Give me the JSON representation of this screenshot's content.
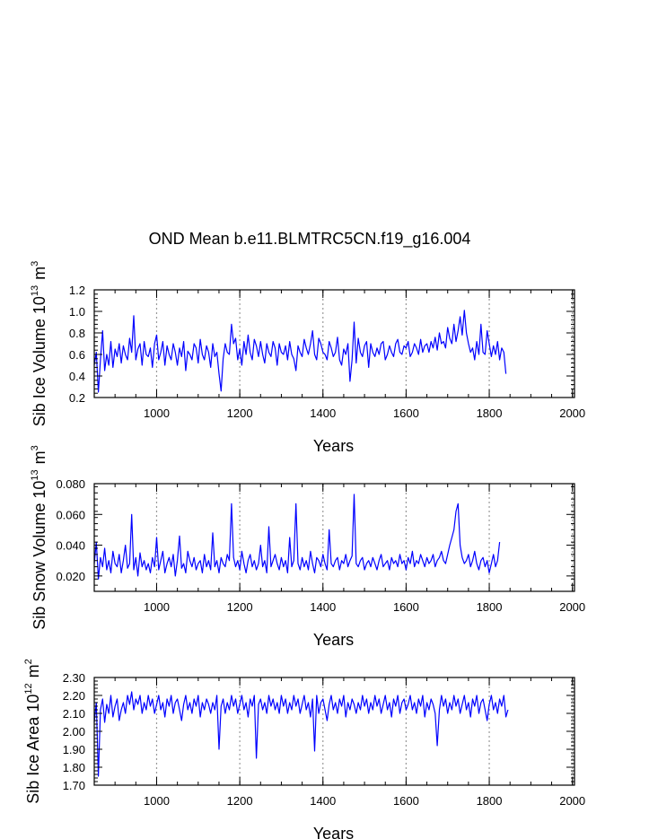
{
  "figure": {
    "title": "OND Mean b.e11.BLMTRC5CN.f19_g16.004"
  },
  "chart_data": [
    {
      "type": "line",
      "title": "OND Mean b.e11.BLMTRC5CN.f19_g16.004",
      "xlabel": "Years",
      "ylabel_base": "Sib Ice Volume 10",
      "ylabel_exp": "13",
      "ylabel_unit": "m",
      "ylabel_unit_exp": "3",
      "xlim": [
        850,
        2005
      ],
      "ylim": [
        0.2,
        1.2
      ],
      "xticks": [
        1000,
        1200,
        1400,
        1600,
        1800,
        2000
      ],
      "xtick_labels": [
        "1000",
        "1200",
        "1400",
        "1600",
        "1800",
        "2000"
      ],
      "yticks": [
        0.2,
        0.4,
        0.6,
        0.8,
        1.0,
        1.2
      ],
      "ytick_labels": [
        "0.2",
        "0.4",
        "0.6",
        "0.8",
        "1.0",
        "1.2"
      ],
      "series_style": {
        "color": "#0000ff"
      },
      "series": [
        {
          "name": "Sib Ice Volume",
          "x_start": 850,
          "x_step": 5,
          "values": [
            0.5,
            0.62,
            0.25,
            0.55,
            0.82,
            0.45,
            0.6,
            0.5,
            0.72,
            0.48,
            0.65,
            0.58,
            0.7,
            0.52,
            0.68,
            0.6,
            0.55,
            0.75,
            0.62,
            0.96,
            0.55,
            0.65,
            0.7,
            0.5,
            0.72,
            0.6,
            0.58,
            0.66,
            0.48,
            0.7,
            0.78,
            0.55,
            0.62,
            0.72,
            0.5,
            0.68,
            0.6,
            0.55,
            0.7,
            0.62,
            0.5,
            0.66,
            0.58,
            0.72,
            0.45,
            0.63,
            0.6,
            0.55,
            0.7,
            0.66,
            0.52,
            0.74,
            0.6,
            0.55,
            0.68,
            0.62,
            0.48,
            0.7,
            0.58,
            0.62,
            0.42,
            0.26,
            0.56,
            0.7,
            0.62,
            0.6,
            0.88,
            0.7,
            0.75,
            0.55,
            0.65,
            0.5,
            0.72,
            0.6,
            0.78,
            0.62,
            0.55,
            0.74,
            0.68,
            0.58,
            0.72,
            0.6,
            0.52,
            0.7,
            0.62,
            0.58,
            0.72,
            0.66,
            0.5,
            0.7,
            0.62,
            0.6,
            0.68,
            0.55,
            0.72,
            0.6,
            0.56,
            0.45,
            0.68,
            0.62,
            0.58,
            0.74,
            0.66,
            0.6,
            0.7,
            0.82,
            0.6,
            0.55,
            0.75,
            0.7,
            0.62,
            0.6,
            0.55,
            0.72,
            0.66,
            0.58,
            0.62,
            0.76,
            0.55,
            0.5,
            0.65,
            0.6,
            0.7,
            0.35,
            0.55,
            0.9,
            0.52,
            0.75,
            0.62,
            0.58,
            0.68,
            0.72,
            0.48,
            0.7,
            0.62,
            0.58,
            0.66,
            0.6,
            0.7,
            0.72,
            0.55,
            0.6,
            0.68,
            0.62,
            0.58,
            0.7,
            0.74,
            0.62,
            0.6,
            0.68,
            0.66,
            0.72,
            0.58,
            0.62,
            0.7,
            0.66,
            0.6,
            0.74,
            0.62,
            0.68,
            0.7,
            0.62,
            0.72,
            0.66,
            0.76,
            0.64,
            0.8,
            0.7,
            0.72,
            0.66,
            0.85,
            0.75,
            0.7,
            0.88,
            0.72,
            0.82,
            0.95,
            0.78,
            1.01,
            0.8,
            0.7,
            0.62,
            0.66,
            0.55,
            0.72,
            0.6,
            0.88,
            0.62,
            0.6,
            0.82,
            0.7,
            0.58,
            0.68,
            0.6,
            0.72,
            0.55,
            0.66,
            0.62,
            0.42
          ]
        }
      ]
    },
    {
      "type": "line",
      "xlabel": "Years",
      "ylabel_base": "Sib Snow Volume 10",
      "ylabel_exp": "13",
      "ylabel_unit": "m",
      "ylabel_unit_exp": "3",
      "xlim": [
        850,
        2005
      ],
      "ylim": [
        0.01,
        0.08
      ],
      "xticks": [
        1000,
        1200,
        1400,
        1600,
        1800,
        2000
      ],
      "xtick_labels": [
        "1000",
        "1200",
        "1400",
        "1600",
        "1800",
        "2000"
      ],
      "yticks": [
        0.02,
        0.04,
        0.06,
        0.08
      ],
      "ytick_labels": [
        "0.020",
        "0.040",
        "0.060",
        "0.080"
      ],
      "series_style": {
        "color": "#0000ff"
      },
      "series": [
        {
          "name": "Sib Snow Volume",
          "x_start": 850,
          "x_step": 5,
          "values": [
            0.028,
            0.042,
            0.018,
            0.032,
            0.026,
            0.038,
            0.024,
            0.03,
            0.022,
            0.036,
            0.028,
            0.026,
            0.034,
            0.022,
            0.03,
            0.04,
            0.025,
            0.028,
            0.06,
            0.024,
            0.032,
            0.02,
            0.035,
            0.026,
            0.03,
            0.024,
            0.028,
            0.022,
            0.032,
            0.026,
            0.045,
            0.024,
            0.03,
            0.036,
            0.022,
            0.028,
            0.032,
            0.026,
            0.034,
            0.02,
            0.03,
            0.046,
            0.025,
            0.028,
            0.022,
            0.036,
            0.03,
            0.026,
            0.032,
            0.024,
            0.028,
            0.03,
            0.022,
            0.034,
            0.026,
            0.03,
            0.024,
            0.048,
            0.026,
            0.03,
            0.022,
            0.032,
            0.028,
            0.026,
            0.034,
            0.03,
            0.067,
            0.032,
            0.026,
            0.03,
            0.024,
            0.036,
            0.028,
            0.022,
            0.03,
            0.034,
            0.026,
            0.03,
            0.024,
            0.028,
            0.04,
            0.026,
            0.03,
            0.022,
            0.052,
            0.026,
            0.03,
            0.034,
            0.028,
            0.024,
            0.032,
            0.026,
            0.03,
            0.022,
            0.045,
            0.026,
            0.03,
            0.067,
            0.028,
            0.024,
            0.032,
            0.026,
            0.03,
            0.024,
            0.036,
            0.028,
            0.022,
            0.032,
            0.03,
            0.026,
            0.034,
            0.028,
            0.024,
            0.05,
            0.028,
            0.026,
            0.03,
            0.032,
            0.024,
            0.03,
            0.028,
            0.034,
            0.026,
            0.03,
            0.033,
            0.073,
            0.028,
            0.026,
            0.03,
            0.032,
            0.024,
            0.028,
            0.03,
            0.026,
            0.032,
            0.028,
            0.024,
            0.03,
            0.034,
            0.026,
            0.028,
            0.03,
            0.024,
            0.032,
            0.028,
            0.03,
            0.026,
            0.034,
            0.028,
            0.03,
            0.024,
            0.032,
            0.028,
            0.036,
            0.026,
            0.03,
            0.028,
            0.034,
            0.03,
            0.026,
            0.032,
            0.028,
            0.03,
            0.034,
            0.026,
            0.03,
            0.032,
            0.036,
            0.03,
            0.028,
            0.034,
            0.04,
            0.045,
            0.05,
            0.062,
            0.067,
            0.04,
            0.032,
            0.028,
            0.03,
            0.034,
            0.026,
            0.03,
            0.036,
            0.028,
            0.024,
            0.03,
            0.032,
            0.026,
            0.03,
            0.022,
            0.028,
            0.034,
            0.026,
            0.03,
            0.042
          ]
        }
      ]
    },
    {
      "type": "line",
      "xlabel": "Years",
      "ylabel_base": "Sib Ice Area 10",
      "ylabel_exp": "12",
      "ylabel_unit": "m",
      "ylabel_unit_exp": "2",
      "xlim": [
        850,
        2005
      ],
      "ylim": [
        1.7,
        2.3
      ],
      "xticks": [
        1000,
        1200,
        1400,
        1600,
        1800,
        2000
      ],
      "xtick_labels": [
        "1000",
        "1200",
        "1400",
        "1600",
        "1800",
        "2000"
      ],
      "yticks": [
        1.7,
        1.8,
        1.9,
        2.0,
        2.1,
        2.2,
        2.3
      ],
      "ytick_labels": [
        "1.70",
        "1.80",
        "1.90",
        "2.00",
        "2.10",
        "2.20",
        "2.30"
      ],
      "series_style": {
        "color": "#0000ff"
      },
      "series": [
        {
          "name": "Sib Ice Area",
          "x_start": 850,
          "x_step": 5,
          "values": [
            2.05,
            2.16,
            1.75,
            2.12,
            2.18,
            2.05,
            2.15,
            2.1,
            2.2,
            2.08,
            2.14,
            2.18,
            2.06,
            2.12,
            2.16,
            2.1,
            2.2,
            2.15,
            2.22,
            2.12,
            2.18,
            2.15,
            2.2,
            2.1,
            2.16,
            2.12,
            2.2,
            2.14,
            2.18,
            2.1,
            2.15,
            2.2,
            2.12,
            2.16,
            2.08,
            2.18,
            2.14,
            2.2,
            2.1,
            2.16,
            2.18,
            2.12,
            2.06,
            2.15,
            2.2,
            2.12,
            2.16,
            2.1,
            2.18,
            2.14,
            2.2,
            2.08,
            2.16,
            2.12,
            2.18,
            2.15,
            2.1,
            2.16,
            2.12,
            2.2,
            1.9,
            2.14,
            2.18,
            2.1,
            2.16,
            2.12,
            2.2,
            2.14,
            2.18,
            2.1,
            2.15,
            2.2,
            2.12,
            2.16,
            2.08,
            2.18,
            2.14,
            2.2,
            1.85,
            2.15,
            2.18,
            2.12,
            2.16,
            2.1,
            2.2,
            2.14,
            2.18,
            2.12,
            2.16,
            2.1,
            2.2,
            2.14,
            2.18,
            2.1,
            2.16,
            2.12,
            2.2,
            2.14,
            2.18,
            2.1,
            2.15,
            2.2,
            2.12,
            2.16,
            2.08,
            2.18,
            1.89,
            2.2,
            2.1,
            2.16,
            2.18,
            2.12,
            2.06,
            2.15,
            2.2,
            2.12,
            2.16,
            2.1,
            2.18,
            2.14,
            2.2,
            2.08,
            2.16,
            2.12,
            2.18,
            2.15,
            2.1,
            2.16,
            2.12,
            2.2,
            2.14,
            2.18,
            2.1,
            2.16,
            2.12,
            2.2,
            2.14,
            2.18,
            2.1,
            2.15,
            2.2,
            2.12,
            2.16,
            2.08,
            2.18,
            2.14,
            2.2,
            2.1,
            2.16,
            2.18,
            2.12,
            2.15,
            2.2,
            2.12,
            2.16,
            2.1,
            2.18,
            2.14,
            2.2,
            2.08,
            2.16,
            2.12,
            2.18,
            2.15,
            2.1,
            1.92,
            2.12,
            2.2,
            2.14,
            2.18,
            2.1,
            2.16,
            2.12,
            2.2,
            2.14,
            2.18,
            2.1,
            2.15,
            2.2,
            2.12,
            2.16,
            2.08,
            2.18,
            2.14,
            2.2,
            2.1,
            2.16,
            2.18,
            2.12,
            2.06,
            2.15,
            2.2,
            2.12,
            2.16,
            2.1,
            2.18,
            2.14,
            2.2,
            2.08,
            2.12
          ]
        }
      ]
    }
  ]
}
